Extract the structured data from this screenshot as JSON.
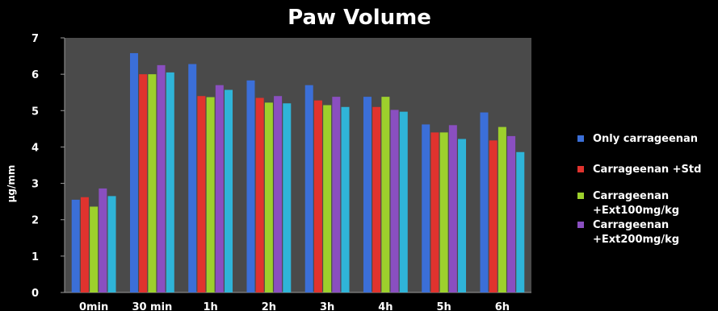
{
  "chart_data": {
    "type": "bar",
    "title": "Paw Volume",
    "xlabel": "",
    "ylabel": "μg/mm",
    "ylim": [
      0,
      7
    ],
    "yticks": [
      0,
      1,
      2,
      3,
      4,
      5,
      6,
      7
    ],
    "categories": [
      "0min",
      "30 min",
      "1h",
      "2h",
      "3h",
      "4h",
      "5h",
      "6h"
    ],
    "grid": false,
    "legend_position": "right",
    "plot_background": "#4a4a4a",
    "series": [
      {
        "name": "Only carrageenan",
        "color": "#3b6fd8",
        "values": [
          2.55,
          6.58,
          6.28,
          5.83,
          5.7,
          5.38,
          4.62,
          4.95
        ]
      },
      {
        "name": "Carrageenan +Std",
        "color": "#e0332e",
        "values": [
          2.62,
          6.0,
          5.4,
          5.35,
          5.28,
          5.1,
          4.4,
          4.18
        ]
      },
      {
        "name": "Carrageenan +Ext100mg/kg",
        "color": "#9dd02c",
        "values": [
          2.36,
          6.0,
          5.37,
          5.22,
          5.15,
          5.38,
          4.4,
          4.55
        ]
      },
      {
        "name": "Carrageenan +Ext200mg/kg",
        "color": "#8a4fc0",
        "values": [
          2.86,
          6.25,
          5.7,
          5.4,
          5.38,
          5.02,
          4.6,
          4.3
        ]
      },
      {
        "name": "",
        "color": "#2fb4d8",
        "values": [
          2.65,
          6.05,
          5.57,
          5.2,
          5.1,
          4.97,
          4.22,
          3.86
        ]
      }
    ]
  }
}
